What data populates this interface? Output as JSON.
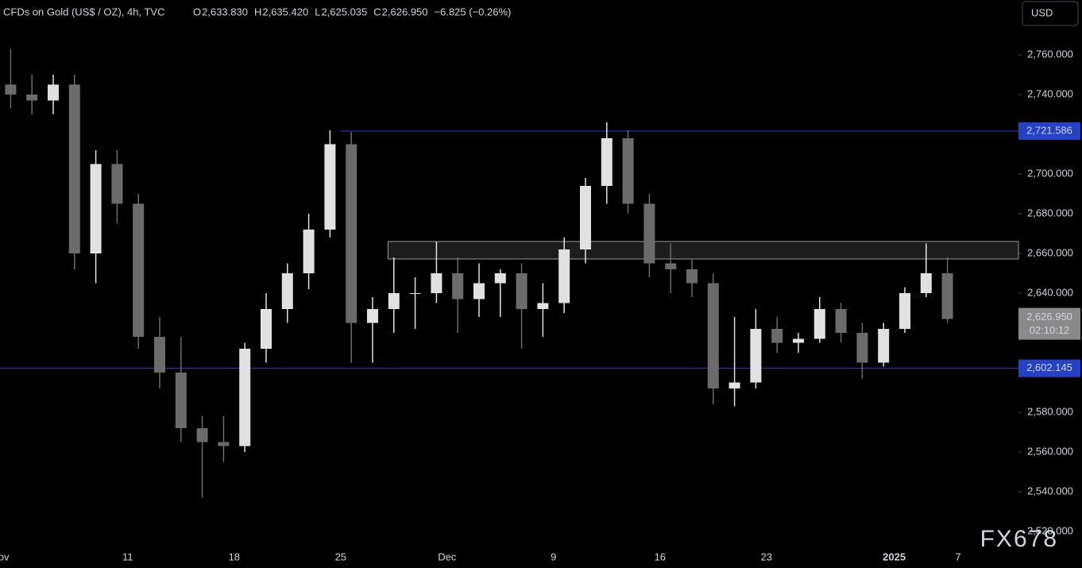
{
  "chart_data": {
    "type": "candlestick",
    "title": "CFDs on Gold (US$ / OZ), 4h, TVC",
    "quote": {
      "open_label": "O",
      "open": "2,633.830",
      "high_label": "H",
      "high": "2,635.420",
      "low_label": "L",
      "low": "2,625.035",
      "close_label": "C",
      "close": "2,626.950",
      "change": "−6.825 (−0.26%)"
    },
    "currency": "USD",
    "watermark": "FX678",
    "categories": [
      "Nov",
      null,
      null,
      null,
      null,
      null,
      "11",
      null,
      null,
      null,
      null,
      "18",
      null,
      null,
      null,
      null,
      "25",
      null,
      null,
      null,
      null,
      "Dec",
      null,
      null,
      null,
      null,
      "9",
      null,
      null,
      null,
      null,
      "16",
      null,
      null,
      null,
      null,
      "23",
      null,
      null,
      null,
      null,
      null,
      "2025",
      null,
      null,
      "7"
    ],
    "open": [
      2745,
      2740,
      2737,
      2745,
      2660,
      2705,
      2685,
      2618,
      2600,
      2572,
      2565,
      2563,
      2612,
      2632,
      2650,
      2672,
      2715,
      2625,
      2632,
      2640,
      2640,
      2650,
      2637,
      2645,
      2650,
      2632,
      2635,
      2662,
      2694,
      2718,
      2685,
      2655,
      2652,
      2645,
      2592,
      2595,
      2622,
      2615,
      2617,
      2632,
      2620,
      2605,
      2622,
      2640,
      2650,
      null
    ],
    "high": [
      2763,
      2750,
      2750,
      2750,
      2712,
      2712,
      2690,
      2628,
      2618,
      2578,
      2578,
      2615,
      2640,
      2655,
      2680,
      2722,
      2721,
      2638,
      2658,
      2648,
      2666,
      2658,
      2655,
      2652,
      2655,
      2645,
      2668,
      2698,
      2726,
      2722,
      2690,
      2665,
      2657,
      2650,
      2628,
      2632,
      2628,
      2620,
      2638,
      2635,
      2625,
      2625,
      2643,
      2665,
      2658,
      null
    ],
    "low": [
      2733,
      2730,
      2730,
      2652,
      2645,
      2675,
      2612,
      2592,
      2565,
      2537,
      2555,
      2560,
      2605,
      2625,
      2642,
      2668,
      2605,
      2605,
      2620,
      2622,
      2635,
      2620,
      2628,
      2628,
      2612,
      2618,
      2630,
      2655,
      2685,
      2680,
      2648,
      2640,
      2638,
      2584,
      2583,
      2592,
      2610,
      2610,
      2615,
      2615,
      2597,
      2603,
      2620,
      2638,
      2625,
      null
    ],
    "close": [
      2740,
      2737,
      2745,
      2660,
      2705,
      2685,
      2618,
      2600,
      2572,
      2565,
      2563,
      2612,
      2632,
      2650,
      2672,
      2715,
      2625,
      2632,
      2640,
      2640,
      2650,
      2637,
      2645,
      2650,
      2632,
      2635,
      2662,
      2694,
      2718,
      2685,
      2655,
      2652,
      2645,
      2592,
      2595,
      2622,
      2615,
      2617,
      2632,
      2620,
      2605,
      2622,
      2640,
      2650,
      2627,
      null
    ],
    "up_color": "#e1e1e1",
    "down_color": "#6b6b6b",
    "ylim": [
      2511.6,
      2787.6
    ],
    "yticks": [
      {
        "value": 2520,
        "label": "2,520.000"
      },
      {
        "value": 2540,
        "label": "2,540.000"
      },
      {
        "value": 2560,
        "label": "2,560.000"
      },
      {
        "value": 2580,
        "label": "2,580.000"
      },
      {
        "value": 2600,
        "label": "2,600.000"
      },
      {
        "value": 2620,
        "label": "2,620.000"
      },
      {
        "value": 2640,
        "label": "2,640.000"
      },
      {
        "value": 2660,
        "label": "2,660.000"
      },
      {
        "value": 2680,
        "label": "2,680.000"
      },
      {
        "value": 2700,
        "label": "2,700.000"
      },
      {
        "value": 2720,
        "label": "2,720.000"
      },
      {
        "value": 2740,
        "label": "2,740.000"
      },
      {
        "value": 2760,
        "label": "2,760.000"
      }
    ],
    "levels": [
      {
        "value": 2721.586,
        "label": "2,721.586",
        "start": 16
      },
      {
        "value": 2602.145,
        "label": "2,602.145",
        "start": 0
      }
    ],
    "zone": {
      "low": 2657.2,
      "high": 2666,
      "start": 18
    },
    "last_price": {
      "value": 2626.95,
      "label": "2,626.950",
      "countdown": "02:10:12"
    }
  }
}
